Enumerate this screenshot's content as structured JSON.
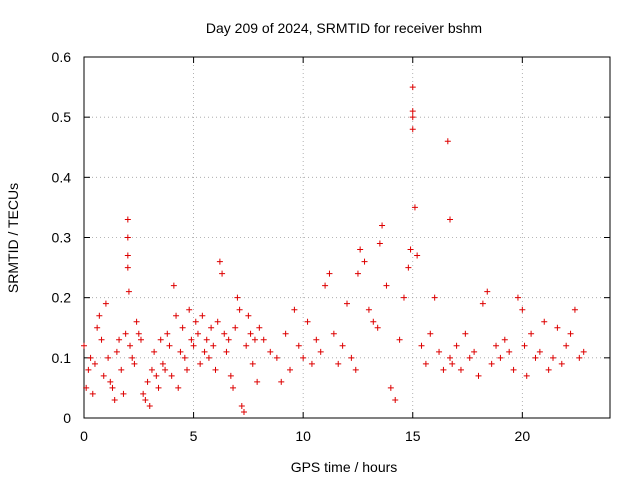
{
  "chart_data": {
    "type": "scatter",
    "title": "Day 209 of 2024, SRMTID for receiver bshm",
    "xlabel": "GPS time / hours",
    "ylabel": "SRMTID / TECUs",
    "xlim": [
      0,
      24
    ],
    "ylim": [
      0,
      0.6
    ],
    "x_ticks": [
      0,
      5,
      10,
      15,
      20
    ],
    "x_tick_labels": [
      "0",
      "5",
      "10",
      "15",
      "20"
    ],
    "y_ticks": [
      0,
      0.1,
      0.2,
      0.3,
      0.4,
      0.5,
      0.6
    ],
    "y_tick_labels": [
      "0",
      "0.1",
      "0.2",
      "0.3",
      "0.4",
      "0.5",
      "0.6"
    ],
    "grid": true,
    "marker": "plus",
    "color": "#dd0000",
    "series": [
      {
        "name": "SRMTID",
        "x": [
          0.0,
          0.1,
          0.2,
          0.3,
          0.4,
          0.5,
          0.6,
          0.7,
          0.8,
          0.9,
          1.0,
          1.1,
          1.2,
          1.3,
          1.4,
          1.5,
          1.6,
          1.7,
          1.8,
          1.9,
          2.0,
          2.0,
          2.0,
          2.0,
          2.05,
          2.1,
          2.2,
          2.3,
          2.4,
          2.5,
          2.6,
          2.7,
          2.8,
          2.9,
          3.0,
          3.1,
          3.2,
          3.3,
          3.4,
          3.5,
          3.6,
          3.7,
          3.8,
          3.9,
          4.0,
          4.1,
          4.2,
          4.3,
          4.4,
          4.5,
          4.6,
          4.7,
          4.8,
          4.9,
          5.0,
          5.1,
          5.2,
          5.3,
          5.4,
          5.5,
          5.6,
          5.7,
          5.8,
          5.9,
          6.0,
          6.1,
          6.2,
          6.3,
          6.4,
          6.5,
          6.6,
          6.7,
          6.8,
          6.9,
          7.0,
          7.1,
          7.2,
          7.3,
          7.4,
          7.5,
          7.6,
          7.7,
          7.8,
          7.9,
          8.0,
          8.2,
          8.5,
          8.8,
          9.0,
          9.2,
          9.4,
          9.6,
          9.8,
          10.0,
          10.2,
          10.4,
          10.6,
          10.8,
          11.0,
          11.2,
          11.4,
          11.6,
          11.8,
          12.0,
          12.2,
          12.4,
          12.5,
          12.6,
          12.8,
          13.0,
          13.2,
          13.4,
          13.5,
          13.6,
          13.8,
          14.0,
          14.2,
          14.4,
          14.6,
          14.8,
          14.9,
          15.0,
          15.0,
          15.0,
          15.0,
          15.1,
          15.2,
          15.4,
          15.6,
          15.8,
          16.0,
          16.2,
          16.4,
          16.6,
          16.7,
          16.7,
          16.8,
          17.0,
          17.2,
          17.4,
          17.6,
          17.8,
          18.0,
          18.2,
          18.4,
          18.6,
          18.8,
          19.0,
          19.2,
          19.4,
          19.6,
          19.8,
          20.0,
          20.1,
          20.2,
          20.4,
          20.6,
          20.8,
          21.0,
          21.2,
          21.4,
          21.6,
          21.8,
          22.0,
          22.2,
          22.4,
          22.6,
          22.8
        ],
        "y": [
          0.12,
          0.05,
          0.08,
          0.1,
          0.04,
          0.09,
          0.15,
          0.17,
          0.13,
          0.07,
          0.19,
          0.1,
          0.06,
          0.05,
          0.03,
          0.11,
          0.13,
          0.08,
          0.04,
          0.14,
          0.33,
          0.3,
          0.27,
          0.25,
          0.21,
          0.12,
          0.1,
          0.09,
          0.16,
          0.14,
          0.13,
          0.04,
          0.03,
          0.06,
          0.02,
          0.08,
          0.11,
          0.07,
          0.05,
          0.13,
          0.09,
          0.08,
          0.14,
          0.12,
          0.07,
          0.22,
          0.17,
          0.05,
          0.11,
          0.15,
          0.1,
          0.08,
          0.18,
          0.13,
          0.12,
          0.16,
          0.14,
          0.09,
          0.17,
          0.11,
          0.13,
          0.1,
          0.15,
          0.12,
          0.08,
          0.16,
          0.26,
          0.24,
          0.14,
          0.11,
          0.13,
          0.07,
          0.05,
          0.15,
          0.2,
          0.18,
          0.02,
          0.01,
          0.12,
          0.17,
          0.14,
          0.09,
          0.13,
          0.06,
          0.15,
          0.13,
          0.11,
          0.1,
          0.06,
          0.14,
          0.08,
          0.18,
          0.12,
          0.1,
          0.16,
          0.09,
          0.13,
          0.11,
          0.22,
          0.24,
          0.14,
          0.09,
          0.12,
          0.19,
          0.1,
          0.08,
          0.24,
          0.28,
          0.26,
          0.18,
          0.16,
          0.15,
          0.29,
          0.32,
          0.22,
          0.05,
          0.03,
          0.13,
          0.2,
          0.25,
          0.28,
          0.55,
          0.51,
          0.5,
          0.48,
          0.35,
          0.27,
          0.12,
          0.09,
          0.14,
          0.2,
          0.11,
          0.08,
          0.46,
          0.33,
          0.1,
          0.09,
          0.12,
          0.08,
          0.14,
          0.1,
          0.11,
          0.07,
          0.19,
          0.21,
          0.09,
          0.12,
          0.1,
          0.13,
          0.11,
          0.08,
          0.2,
          0.18,
          0.12,
          0.07,
          0.14,
          0.1,
          0.11,
          0.16,
          0.08,
          0.1,
          0.15,
          0.09,
          0.12,
          0.14,
          0.18,
          0.1,
          0.11
        ]
      }
    ]
  }
}
